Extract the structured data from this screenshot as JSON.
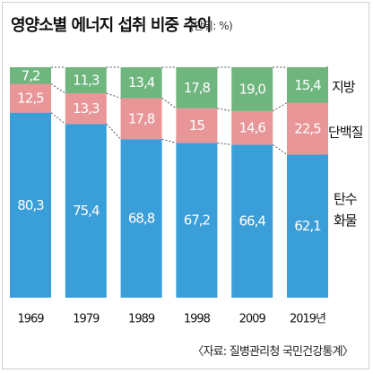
{
  "title": "영양소별 에너지 섭취 비중 추이",
  "unit": "(단위: %)",
  "source": "〈자료: 질병관리청 국민건강통계〉",
  "colors": {
    "carb": "#3a9ed8",
    "protein": "#e89697",
    "fat": "#6eb57e"
  },
  "chart_data": {
    "type": "bar",
    "stacked": true,
    "categories": [
      "1969",
      "1979",
      "1989",
      "1998",
      "2009",
      "2019년"
    ],
    "series": [
      {
        "name": "탄수 화물",
        "values": [
          80.3,
          75.4,
          68.8,
          67.2,
          66.4,
          62.1
        ],
        "labels": [
          "80,3",
          "75,4",
          "68,8",
          "67,2",
          "66,4",
          "62,1"
        ]
      },
      {
        "name": "단백질",
        "values": [
          12.5,
          13.3,
          17.8,
          15,
          14.6,
          22.5
        ],
        "labels": [
          "12,5",
          "13,3",
          "17,8",
          "15",
          "14,6",
          "22,5"
        ]
      },
      {
        "name": "지방",
        "values": [
          7.2,
          11.3,
          13.4,
          17.8,
          19.0,
          15.4
        ],
        "labels": [
          "7,2",
          "11,3",
          "13,4",
          "17,8",
          "19,0",
          "15,4"
        ]
      }
    ],
    "legend_placement": "right",
    "ylim": [
      0,
      100
    ]
  }
}
